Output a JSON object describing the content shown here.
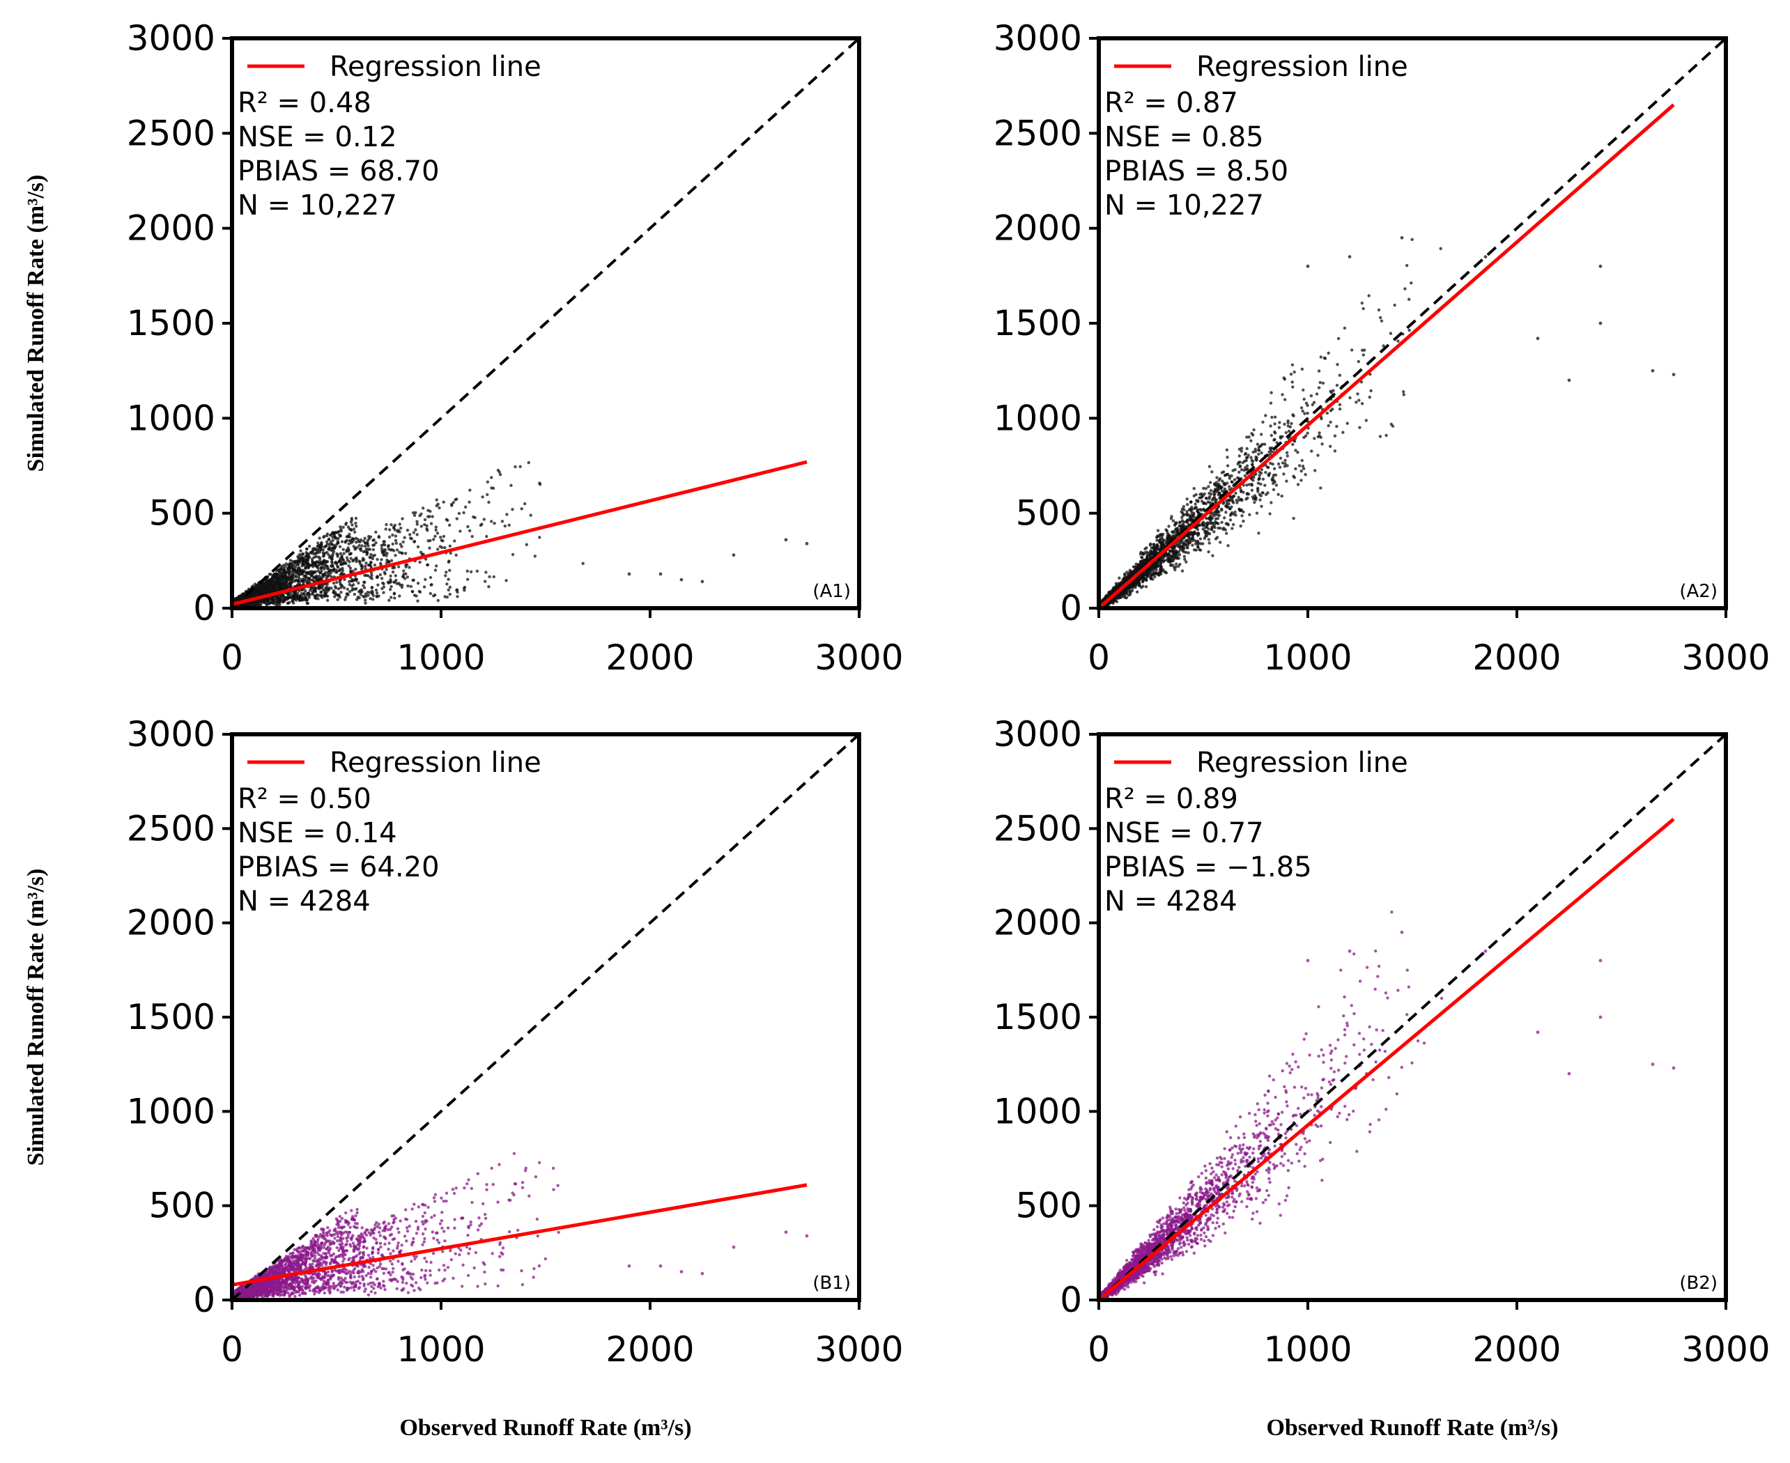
{
  "figure": {
    "ylabel": "Simulated Runoff Rate (m³/s)",
    "xlabel": "Observed Runoff Rate (m³/s)"
  },
  "chart_data": [
    {
      "type": "scatter",
      "panel_label": "(A1)",
      "legend_label": "Regression line",
      "legend_position": "top-left",
      "stats": [
        "R² = 0.48",
        "NSE = 0.12",
        "PBIAS = 68.70",
        "N = 10,227"
      ],
      "xlim": [
        0,
        3000
      ],
      "ylim": [
        0,
        3000
      ],
      "xticks": [
        0,
        1000,
        2000,
        3000
      ],
      "xtick_labels": [
        "0",
        "1000",
        "2000",
        "3000"
      ],
      "yticks": [
        0,
        500,
        1000,
        1500,
        2000,
        2500,
        3000
      ],
      "ytick_labels": [
        "0",
        "500",
        "1000",
        "1500",
        "2000",
        "2500",
        "3000"
      ],
      "xlabel": "Observed Runoff Rate (m³/s)",
      "ylabel": "Simulated Runoff Rate (m³/s)",
      "point_color": "#111111",
      "regression_color": "#ff0000",
      "regression_line": {
        "x": [
          0,
          2750
        ],
        "y": [
          20,
          770
        ]
      },
      "one_to_one_line": {
        "x": [
          0,
          3000
        ],
        "y": [
          0,
          3000
        ],
        "style": "dashed"
      },
      "n_points": 10227,
      "points": {
        "seed": 11,
        "count": 2600,
        "slope": 0.3,
        "intercept": 20,
        "spread": 0.55,
        "xscale": 330,
        "outliers": [
          [
            2650,
            360
          ],
          [
            2750,
            340
          ],
          [
            2400,
            280
          ],
          [
            2250,
            140
          ],
          [
            2150,
            150
          ],
          [
            2050,
            180
          ],
          [
            1900,
            180
          ]
        ]
      }
    },
    {
      "type": "scatter",
      "panel_label": "(A2)",
      "legend_label": "Regression line",
      "legend_position": "top-left",
      "stats": [
        "R² = 0.87",
        "NSE = 0.85",
        "PBIAS = 8.50",
        "N = 10,227"
      ],
      "xlim": [
        0,
        3000
      ],
      "ylim": [
        0,
        3000
      ],
      "xticks": [
        0,
        1000,
        2000,
        3000
      ],
      "xtick_labels": [
        "0",
        "1000",
        "2000",
        "3000"
      ],
      "yticks": [
        0,
        500,
        1000,
        1500,
        2000,
        2500,
        3000
      ],
      "ytick_labels": [
        "0",
        "500",
        "1000",
        "1500",
        "2000",
        "2500",
        "3000"
      ],
      "xlabel": "Observed Runoff Rate (m³/s)",
      "ylabel": "Simulated Runoff Rate (m³/s)",
      "point_color": "#111111",
      "regression_color": "#ff0000",
      "regression_line": {
        "x": [
          0,
          2750
        ],
        "y": [
          0,
          2650
        ]
      },
      "one_to_one_line": {
        "x": [
          0,
          3000
        ],
        "y": [
          0,
          3000
        ],
        "style": "dashed"
      },
      "n_points": 10227,
      "points": {
        "seed": 23,
        "count": 2600,
        "slope": 0.96,
        "intercept": 0,
        "spread": 0.22,
        "xscale": 330,
        "outliers": [
          [
            2400,
            1800
          ],
          [
            2400,
            1500
          ],
          [
            2650,
            1250
          ],
          [
            2750,
            1230
          ],
          [
            2250,
            1200
          ],
          [
            2100,
            1420
          ],
          [
            1850,
            1850
          ],
          [
            1450,
            1950
          ],
          [
            1200,
            1850
          ],
          [
            1000,
            1800
          ]
        ]
      }
    },
    {
      "type": "scatter",
      "panel_label": "(B1)",
      "legend_label": "Regression line",
      "legend_position": "top-left",
      "stats": [
        "R² = 0.50",
        "NSE = 0.14",
        "PBIAS = 64.20",
        "N = 4284"
      ],
      "xlim": [
        0,
        3000
      ],
      "ylim": [
        0,
        3000
      ],
      "xticks": [
        0,
        1000,
        2000,
        3000
      ],
      "xtick_labels": [
        "0",
        "1000",
        "2000",
        "3000"
      ],
      "yticks": [
        0,
        500,
        1000,
        1500,
        2000,
        2500,
        3000
      ],
      "ytick_labels": [
        "0",
        "500",
        "1000",
        "1500",
        "2000",
        "2500",
        "3000"
      ],
      "xlabel": "Observed Runoff Rate (m³/s)",
      "ylabel": "Simulated Runoff Rate (m³/s)",
      "point_color": "#8b1a8b",
      "regression_color": "#ff0000",
      "regression_line": {
        "x": [
          0,
          2750
        ],
        "y": [
          80,
          610
        ]
      },
      "one_to_one_line": {
        "x": [
          0,
          3000
        ],
        "y": [
          0,
          3000
        ],
        "style": "dashed"
      },
      "n_points": 4284,
      "points": {
        "seed": 37,
        "count": 2600,
        "slope": 0.3,
        "intercept": 20,
        "spread": 0.55,
        "xscale": 330,
        "outliers": [
          [
            2650,
            360
          ],
          [
            2750,
            340
          ],
          [
            2400,
            280
          ],
          [
            2250,
            140
          ],
          [
            2150,
            150
          ],
          [
            2050,
            180
          ],
          [
            1900,
            180
          ]
        ]
      }
    },
    {
      "type": "scatter",
      "panel_label": "(B2)",
      "legend_label": "Regression line",
      "legend_position": "top-left",
      "stats": [
        "R² = 0.89",
        "NSE = 0.77",
        "PBIAS = −1.85",
        "N = 4284"
      ],
      "xlim": [
        0,
        3000
      ],
      "ylim": [
        0,
        3000
      ],
      "xticks": [
        0,
        1000,
        2000,
        3000
      ],
      "xtick_labels": [
        "0",
        "1000",
        "2000",
        "3000"
      ],
      "yticks": [
        0,
        500,
        1000,
        1500,
        2000,
        2500,
        3000
      ],
      "ytick_labels": [
        "0",
        "500",
        "1000",
        "1500",
        "2000",
        "2500",
        "3000"
      ],
      "xlabel": "Observed Runoff Rate (m³/s)",
      "ylabel": "Simulated Runoff Rate (m³/s)",
      "point_color": "#8b1a8b",
      "regression_color": "#ff0000",
      "regression_line": {
        "x": [
          0,
          2750
        ],
        "y": [
          0,
          2550
        ]
      },
      "one_to_one_line": {
        "x": [
          0,
          3000
        ],
        "y": [
          0,
          3000
        ],
        "style": "dashed"
      },
      "n_points": 4284,
      "points": {
        "seed": 53,
        "count": 2600,
        "slope": 1.0,
        "intercept": 0,
        "spread": 0.24,
        "xscale": 330,
        "outliers": [
          [
            2400,
            1800
          ],
          [
            2400,
            1500
          ],
          [
            2650,
            1250
          ],
          [
            2750,
            1230
          ],
          [
            2250,
            1200
          ],
          [
            2100,
            1420
          ],
          [
            1850,
            1850
          ],
          [
            1450,
            1950
          ],
          [
            1200,
            1850
          ],
          [
            1000,
            1800
          ]
        ]
      }
    }
  ]
}
